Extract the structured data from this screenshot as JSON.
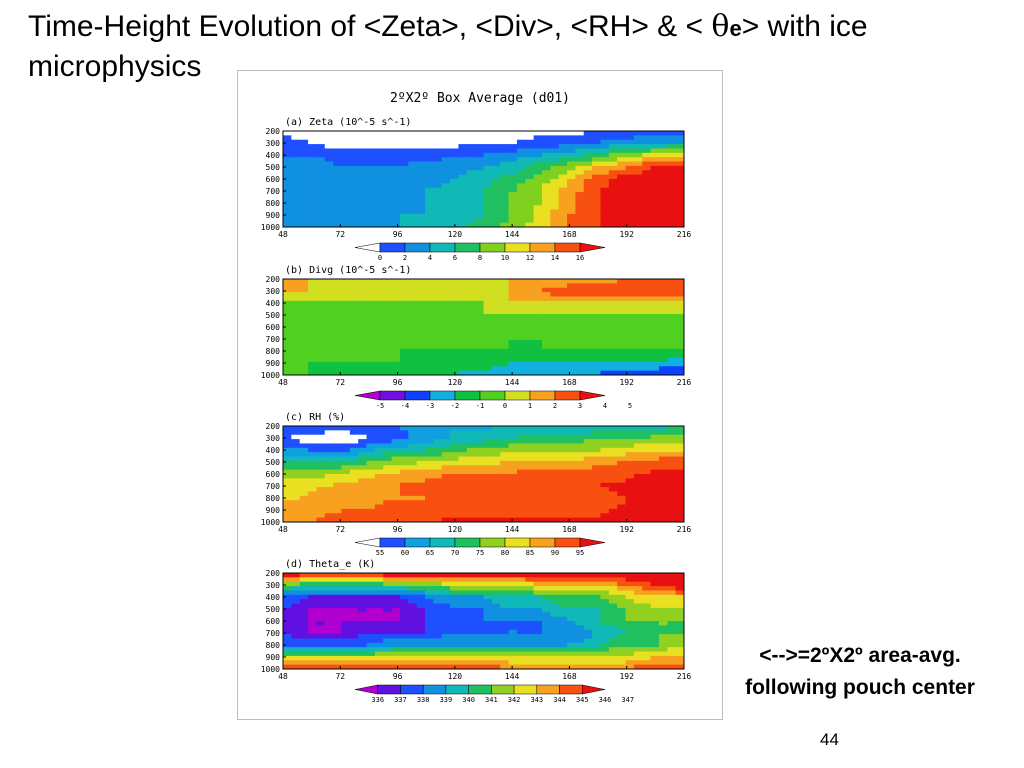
{
  "slide": {
    "title_part1": "Time-Height Evolution of <Zeta>, <Div>, <RH> & < ",
    "title_glyph": "θ",
    "title_sub": "e",
    "title_part2": "> with ice microphysics",
    "note_line1": "<-->=2ºX2º area-avg.",
    "note_line2": "following pouch center",
    "page_number": "44"
  },
  "colors": {
    "zeta": [
      "#ffffff",
      "#1e50ff",
      "#1090e0",
      "#10b8b8",
      "#20c060",
      "#80d020",
      "#e8e020",
      "#f8a020",
      "#f85010",
      "#e81010"
    ],
    "divg": [
      "#b000d0",
      "#7010e0",
      "#1040ff",
      "#10b0e0",
      "#10c040",
      "#50d020",
      "#d0e020",
      "#f8a020",
      "#f85010",
      "#e81010"
    ],
    "rh": [
      "#ffffff",
      "#1e50ff",
      "#10a0e0",
      "#10b8b8",
      "#20c060",
      "#90d020",
      "#e8e020",
      "#f8a020",
      "#f85010",
      "#e81010"
    ],
    "theta": [
      "#b000d0",
      "#6010e0",
      "#1e50ff",
      "#1090e0",
      "#10b8b8",
      "#20c060",
      "#90d020",
      "#e8e020",
      "#f8a020",
      "#f85010",
      "#e81010"
    ]
  },
  "chart_data": [
    {
      "type": "heatmap",
      "title": "2ºX2º Box Average (d01)",
      "panel": "(a) Zeta (10^-5 s^-1)",
      "x_ticks": [
        48,
        72,
        96,
        120,
        144,
        168,
        192,
        216
      ],
      "y_ticks": [
        200,
        300,
        400,
        500,
        600,
        700,
        800,
        900,
        1000
      ],
      "xlim": [
        48,
        216
      ],
      "ylim": [
        1000,
        200
      ],
      "colorbar_ticks": [
        "0",
        "2",
        "4",
        "6",
        "8",
        "10",
        "12",
        "14",
        "16"
      ],
      "x": [
        48,
        60,
        72,
        84,
        96,
        108,
        120,
        132,
        144,
        156,
        168,
        180,
        192,
        204,
        216
      ],
      "y": [
        200,
        300,
        400,
        500,
        600,
        700,
        800,
        900,
        1000
      ],
      "z": [
        [
          -1,
          -1,
          -1,
          -1,
          -1,
          -1,
          -1,
          -1,
          -1,
          -1,
          -1,
          0,
          0,
          1,
          1
        ],
        [
          1,
          0,
          -1,
          -1,
          -1,
          -1,
          -1,
          0,
          0,
          1,
          1,
          2,
          3,
          4,
          4
        ],
        [
          2,
          2,
          1,
          1,
          1,
          1,
          2,
          2,
          3,
          4,
          5,
          7,
          9,
          11,
          12
        ],
        [
          3,
          3,
          2,
          2,
          2,
          3,
          3,
          4,
          5,
          7,
          9,
          12,
          14,
          16,
          17
        ],
        [
          3,
          3,
          3,
          3,
          3,
          3,
          4,
          5,
          7,
          9,
          12,
          15,
          17,
          18,
          18
        ],
        [
          3,
          3,
          3,
          3,
          3,
          4,
          5,
          6,
          8,
          10,
          13,
          16,
          17,
          18,
          18
        ],
        [
          3,
          3,
          3,
          3,
          4,
          4,
          5,
          6,
          8,
          10,
          13,
          16,
          17,
          18,
          18
        ],
        [
          4,
          3,
          3,
          4,
          4,
          4,
          5,
          6,
          8,
          11,
          14,
          16,
          17,
          18,
          18
        ],
        [
          4,
          4,
          4,
          4,
          4,
          5,
          5,
          7,
          9,
          11,
          14,
          16,
          17,
          18,
          18
        ]
      ]
    },
    {
      "type": "heatmap",
      "panel": "(b) Divg (10^-5 s^-1)",
      "x_ticks": [
        48,
        72,
        96,
        120,
        144,
        168,
        192,
        216
      ],
      "y_ticks": [
        200,
        300,
        400,
        500,
        600,
        700,
        800,
        900,
        1000
      ],
      "xlim": [
        48,
        216
      ],
      "ylim": [
        1000,
        200
      ],
      "colorbar_ticks": [
        "-5",
        "-4",
        "-3",
        "-2",
        "-1",
        "0",
        "1",
        "2",
        "3",
        "4",
        "5"
      ],
      "x": [
        48,
        60,
        72,
        84,
        96,
        108,
        120,
        132,
        144,
        156,
        168,
        180,
        192,
        204,
        216
      ],
      "y": [
        200,
        300,
        400,
        500,
        600,
        700,
        800,
        900,
        1000
      ],
      "z": [
        [
          2,
          1,
          1,
          1,
          1,
          1,
          1,
          1,
          1,
          1,
          1,
          1,
          2,
          2,
          2
        ],
        [
          1,
          1,
          1,
          1,
          1,
          1,
          1,
          1,
          1,
          2,
          3,
          3,
          3,
          3,
          3
        ],
        [
          0,
          0,
          0,
          0,
          0,
          0,
          0,
          0,
          1,
          1,
          1,
          1,
          1,
          1,
          1
        ],
        [
          0,
          0,
          0,
          0,
          0,
          0,
          0,
          0,
          0,
          0,
          0,
          0,
          0,
          0,
          0
        ],
        [
          0,
          0,
          0,
          0,
          0,
          0,
          0,
          0,
          0,
          0,
          0,
          0,
          0,
          0,
          0
        ],
        [
          0,
          0,
          0,
          0,
          0,
          0,
          0,
          0,
          -1,
          -1,
          0,
          0,
          0,
          0,
          0
        ],
        [
          0,
          0,
          0,
          0,
          -1,
          -1,
          -1,
          -1,
          -1,
          -1,
          -1,
          -1,
          -1,
          -1,
          -1
        ],
        [
          0,
          -1,
          -1,
          -1,
          -1,
          -1,
          -1,
          -1,
          -2,
          -2,
          -2,
          -2,
          -2,
          -2,
          -3
        ],
        [
          -1,
          -1,
          -2,
          -2,
          -2,
          -2,
          -2,
          -3,
          -3,
          -3,
          -3,
          -3,
          -4,
          -4,
          -4
        ]
      ]
    },
    {
      "type": "heatmap",
      "panel": "(c) RH (%)",
      "x_ticks": [
        48,
        72,
        96,
        120,
        144,
        168,
        192,
        216
      ],
      "y_ticks": [
        200,
        300,
        400,
        500,
        600,
        700,
        800,
        900,
        1000
      ],
      "xlim": [
        48,
        216
      ],
      "ylim": [
        1000,
        200
      ],
      "colorbar_ticks": [
        "55",
        "60",
        "65",
        "70",
        "75",
        "80",
        "85",
        "90",
        "95"
      ],
      "x": [
        48,
        60,
        72,
        84,
        96,
        108,
        120,
        132,
        144,
        156,
        168,
        180,
        192,
        204,
        216
      ],
      "y": [
        200,
        300,
        400,
        500,
        600,
        700,
        800,
        900,
        1000
      ],
      "z": [
        [
          60,
          60,
          58,
          60,
          60,
          62,
          64,
          64,
          65,
          65,
          66,
          66,
          68,
          68,
          70
        ],
        [
          55,
          52,
          50,
          55,
          58,
          62,
          66,
          68,
          70,
          72,
          72,
          74,
          75,
          76,
          78
        ],
        [
          62,
          60,
          58,
          64,
          68,
          70,
          74,
          76,
          78,
          78,
          80,
          80,
          82,
          84,
          85
        ],
        [
          70,
          70,
          70,
          74,
          78,
          80,
          82,
          84,
          85,
          86,
          86,
          88,
          90,
          92,
          94
        ],
        [
          78,
          78,
          80,
          84,
          86,
          88,
          90,
          90,
          91,
          92,
          92,
          93,
          94,
          96,
          96
        ],
        [
          82,
          84,
          86,
          88,
          90,
          92,
          94,
          94,
          95,
          95,
          95,
          95,
          96,
          97,
          97
        ],
        [
          84,
          86,
          88,
          88,
          90,
          90,
          91,
          92,
          92,
          92,
          92,
          93,
          95,
          97,
          97
        ],
        [
          86,
          88,
          90,
          90,
          92,
          92,
          94,
          94,
          94,
          94,
          94,
          94,
          96,
          97,
          97
        ],
        [
          88,
          90,
          92,
          92,
          94,
          94,
          96,
          96,
          96,
          96,
          96,
          96,
          97,
          97,
          97
        ]
      ]
    },
    {
      "type": "heatmap",
      "panel": "(d) Theta_e (K)",
      "x_ticks": [
        48,
        72,
        96,
        120,
        144,
        168,
        192,
        216
      ],
      "y_ticks": [
        200,
        300,
        400,
        500,
        600,
        700,
        800,
        900,
        1000
      ],
      "xlim": [
        48,
        216
      ],
      "ylim": [
        1000,
        200
      ],
      "colorbar_ticks": [
        "336",
        "337",
        "338",
        "339",
        "340",
        "341",
        "342",
        "343",
        "344",
        "345",
        "346",
        "347"
      ],
      "x": [
        48,
        60,
        72,
        84,
        96,
        108,
        120,
        132,
        144,
        156,
        168,
        180,
        192,
        204,
        216
      ],
      "y": [
        200,
        300,
        400,
        500,
        600,
        700,
        800,
        900,
        1000
      ],
      "z": [
        [
          346,
          346,
          346,
          346,
          346,
          346,
          346,
          346,
          346,
          346,
          346,
          346,
          346,
          347,
          347
        ],
        [
          341,
          340,
          340,
          340,
          341,
          341,
          342,
          342,
          342,
          343,
          343,
          343,
          344,
          345,
          346
        ],
        [
          338,
          337,
          337,
          337,
          337,
          338,
          339,
          339,
          340,
          340,
          341,
          341,
          342,
          343,
          343
        ],
        [
          337,
          336,
          336,
          336,
          336,
          337,
          338,
          338,
          339,
          339,
          340,
          340,
          341,
          342,
          342
        ],
        [
          337,
          336,
          336,
          336,
          336,
          337,
          337,
          338,
          338,
          338,
          339,
          340,
          341,
          341,
          341
        ],
        [
          337,
          336,
          336,
          337,
          337,
          337,
          338,
          338,
          338,
          338,
          338,
          339,
          340,
          341,
          341
        ],
        [
          338,
          338,
          338,
          338,
          339,
          339,
          339,
          339,
          339,
          339,
          339,
          340,
          341,
          341,
          342
        ],
        [
          342,
          342,
          342,
          342,
          342,
          342,
          342,
          342,
          342,
          342,
          342,
          342,
          342,
          343,
          343
        ],
        [
          345,
          345,
          345,
          345,
          345,
          345,
          345,
          345,
          344,
          344,
          344,
          344,
          344,
          345,
          345
        ]
      ]
    }
  ]
}
